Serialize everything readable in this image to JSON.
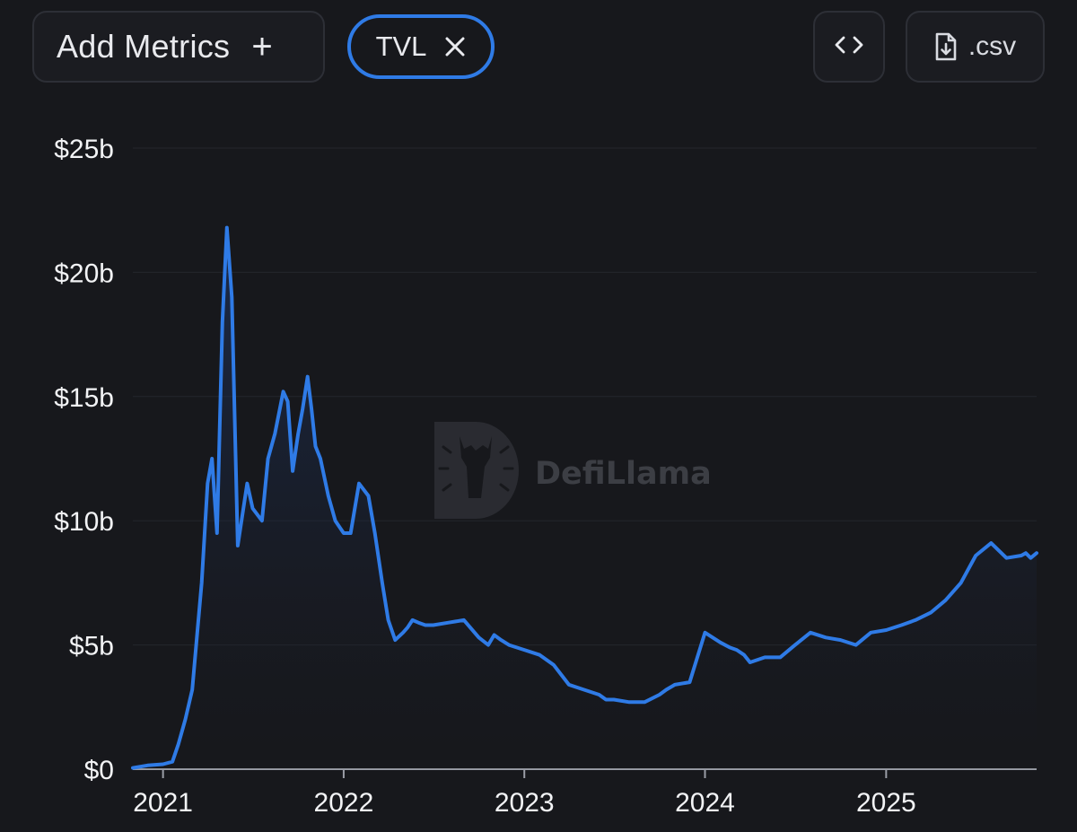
{
  "toolbar": {
    "add_metrics_label": "Add Metrics",
    "add_icon": "plus-icon",
    "active_metric_label": "TVL",
    "remove_icon": "close-icon",
    "embed_icon": "code-icon",
    "csv_label": ".csv",
    "csv_icon": "file-download-icon",
    "accent_color": "#2f7be6"
  },
  "watermark": {
    "text": "DefiLlama",
    "icon": "llama-logo"
  },
  "chart_data": {
    "type": "area",
    "title": "",
    "xlabel": "",
    "ylabel": "",
    "series": [
      {
        "name": "TVL",
        "color": "#2f7be6",
        "x": [
          "2020-11-01",
          "2020-12-01",
          "2021-01-01",
          "2021-01-20",
          "2021-02-01",
          "2021-02-15",
          "2021-03-01",
          "2021-03-20",
          "2021-04-01",
          "2021-04-10",
          "2021-04-20",
          "2021-05-01",
          "2021-05-10",
          "2021-05-20",
          "2021-06-01",
          "2021-06-20",
          "2021-07-01",
          "2021-07-20",
          "2021-08-01",
          "2021-08-15",
          "2021-09-01",
          "2021-09-10",
          "2021-09-20",
          "2021-10-01",
          "2021-10-10",
          "2021-10-20",
          "2021-10-28",
          "2021-11-05",
          "2021-11-15",
          "2021-12-01",
          "2021-12-15",
          "2022-01-01",
          "2022-01-15",
          "2022-02-01",
          "2022-02-20",
          "2022-03-05",
          "2022-03-20",
          "2022-04-01",
          "2022-04-15",
          "2022-05-01",
          "2022-05-10",
          "2022-05-20",
          "2022-06-01",
          "2022-06-15",
          "2022-07-01",
          "2022-08-01",
          "2022-09-01",
          "2022-10-01",
          "2022-10-20",
          "2022-11-01",
          "2022-11-15",
          "2022-12-01",
          "2023-01-01",
          "2023-02-01",
          "2023-03-01",
          "2023-04-01",
          "2023-05-01",
          "2023-06-01",
          "2023-06-15",
          "2023-07-01",
          "2023-08-01",
          "2023-09-01",
          "2023-10-01",
          "2023-10-15",
          "2023-11-01",
          "2023-12-01",
          "2024-01-01",
          "2024-02-01",
          "2024-02-20",
          "2024-03-05",
          "2024-03-20",
          "2024-04-01",
          "2024-05-01",
          "2024-06-01",
          "2024-07-01",
          "2024-08-01",
          "2024-09-01",
          "2024-10-01",
          "2024-11-01",
          "2024-12-01",
          "2025-01-01",
          "2025-02-01",
          "2025-03-01",
          "2025-04-01",
          "2025-05-01",
          "2025-06-01",
          "2025-07-01",
          "2025-08-01",
          "2025-09-01",
          "2025-10-01",
          "2025-10-10",
          "2025-10-20",
          "2025-11-01"
        ],
        "y": [
          0.05,
          0.15,
          0.2,
          0.3,
          1.0,
          2.0,
          3.2,
          7.5,
          11.5,
          12.5,
          9.5,
          18.0,
          21.8,
          19.0,
          9.0,
          11.5,
          10.5,
          10.0,
          12.5,
          13.5,
          15.2,
          14.8,
          12.0,
          13.5,
          14.5,
          15.8,
          14.5,
          13.0,
          12.5,
          11.0,
          10.0,
          9.5,
          9.5,
          11.5,
          11.0,
          9.5,
          7.5,
          6.0,
          5.2,
          5.5,
          5.7,
          6.0,
          5.9,
          5.8,
          5.8,
          5.9,
          6.0,
          5.3,
          5.0,
          5.4,
          5.2,
          5.0,
          4.8,
          4.6,
          4.2,
          3.4,
          3.2,
          3.0,
          2.8,
          2.8,
          2.7,
          2.7,
          3.0,
          3.2,
          3.4,
          3.5,
          5.5,
          5.1,
          4.9,
          4.8,
          4.6,
          4.3,
          4.5,
          4.5,
          5.0,
          5.5,
          5.3,
          5.2,
          5.0,
          5.5,
          5.6,
          5.8,
          6.0,
          6.3,
          6.8,
          7.5,
          8.6,
          9.1,
          8.5,
          8.6,
          8.7,
          8.5,
          8.7
        ]
      }
    ],
    "x_ticks": [
      "2021",
      "2022",
      "2023",
      "2024",
      "2025"
    ],
    "y_ticks": [
      "$0",
      "$5b",
      "$10b",
      "$15b",
      "$20b",
      "$25b"
    ],
    "ylim": [
      0,
      25
    ],
    "xlim": [
      "2020-11-01",
      "2025-11-01"
    ],
    "grid": "horizontal",
    "legend": "none"
  }
}
